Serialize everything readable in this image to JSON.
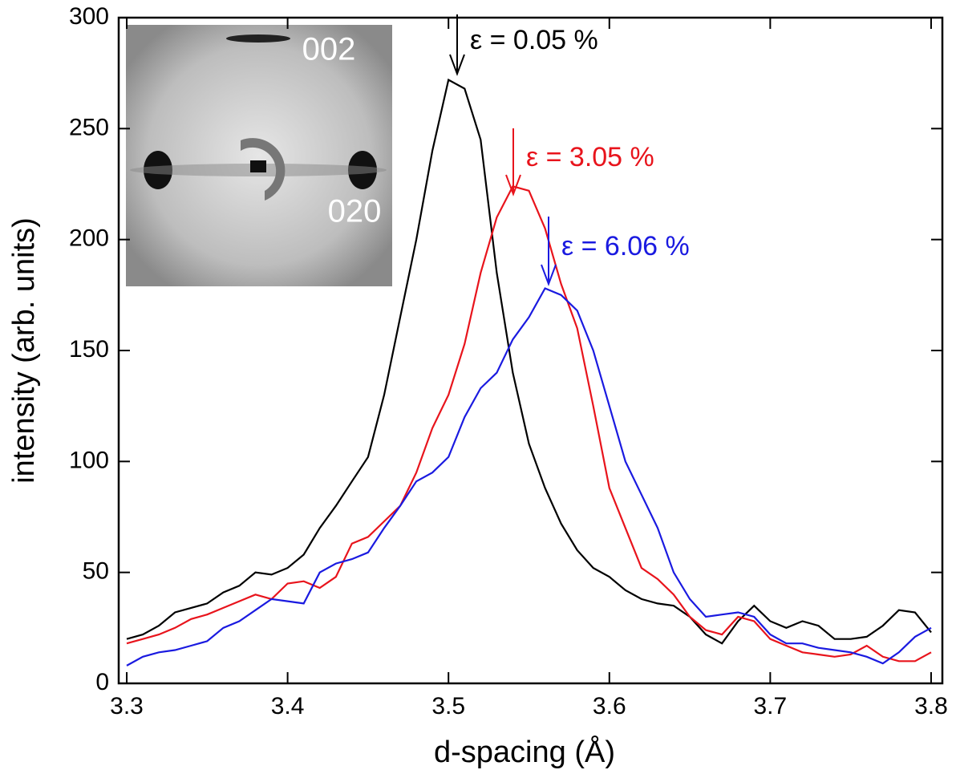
{
  "chart_data": {
    "type": "line",
    "x_label": "d-spacing (Å)",
    "y_label": "intensity (arb. units)",
    "x": [
      3.3,
      3.31,
      3.32,
      3.33,
      3.34,
      3.35,
      3.36,
      3.37,
      3.38,
      3.39,
      3.4,
      3.41,
      3.42,
      3.43,
      3.44,
      3.45,
      3.46,
      3.47,
      3.48,
      3.49,
      3.5,
      3.51,
      3.52,
      3.53,
      3.54,
      3.55,
      3.56,
      3.57,
      3.58,
      3.59,
      3.6,
      3.61,
      3.62,
      3.63,
      3.64,
      3.65,
      3.66,
      3.67,
      3.68,
      3.69,
      3.7,
      3.71,
      3.72,
      3.73,
      3.74,
      3.75,
      3.76,
      3.77,
      3.78,
      3.79,
      3.8
    ],
    "series": [
      {
        "name": "ε = 0.05 %",
        "color": "#000000",
        "values": [
          20,
          22,
          26,
          32,
          34,
          36,
          41,
          44,
          50,
          49,
          52,
          58,
          70,
          80,
          91,
          102,
          130,
          165,
          200,
          240,
          272,
          268,
          245,
          185,
          140,
          108,
          88,
          72,
          60,
          52,
          48,
          42,
          38,
          36,
          35,
          30,
          22,
          18,
          28,
          35,
          28,
          25,
          28,
          26,
          20,
          20,
          21,
          26,
          33,
          32,
          23
        ]
      },
      {
        "name": "ε = 3.05 %",
        "color": "#e8141c",
        "values": [
          18,
          20,
          22,
          25,
          29,
          31,
          34,
          37,
          40,
          38,
          45,
          46,
          43,
          48,
          63,
          66,
          73,
          80,
          95,
          115,
          130,
          153,
          185,
          210,
          224,
          222,
          205,
          180,
          160,
          125,
          88,
          70,
          52,
          47,
          40,
          30,
          24,
          22,
          30,
          28,
          20,
          17,
          14,
          13,
          12,
          13,
          17,
          12,
          10,
          10,
          14
        ]
      },
      {
        "name": "ε = 6.06 %",
        "color": "#1a1ae0",
        "values": [
          8,
          12,
          14,
          15,
          17,
          19,
          25,
          28,
          33,
          38,
          37,
          36,
          50,
          54,
          56,
          59,
          70,
          80,
          91,
          95,
          102,
          120,
          133,
          140,
          155,
          165,
          178,
          175,
          168,
          150,
          125,
          100,
          85,
          70,
          50,
          38,
          30,
          31,
          32,
          30,
          22,
          18,
          18,
          16,
          15,
          14,
          12,
          9,
          14,
          21,
          25
        ]
      }
    ],
    "inset_labels": [
      "002",
      "020"
    ],
    "xlim": [
      3.295,
      3.807
    ],
    "ylim": [
      0,
      300
    ],
    "xticks": [
      3.3,
      3.4,
      3.5,
      3.6,
      3.7,
      3.8
    ],
    "yticks": [
      0,
      50,
      100,
      150,
      200,
      250,
      300
    ]
  }
}
